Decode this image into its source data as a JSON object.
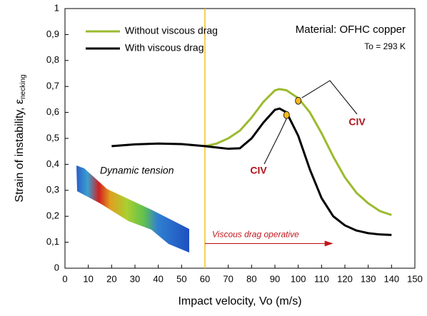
{
  "chart_data": {
    "type": "line",
    "x_label": "Impact velocity, Vo (m/s)",
    "y_label": "Strain of instability, ε",
    "y_label_sub": "necking",
    "x": [
      20,
      30,
      40,
      50,
      60,
      65,
      70,
      75,
      80,
      85,
      90,
      92,
      95,
      100,
      105,
      110,
      115,
      120,
      125,
      130,
      135,
      140
    ],
    "series": [
      {
        "name": "Without viscous drag",
        "color": "#9bbb2f",
        "values": [
          null,
          null,
          null,
          null,
          0.47,
          0.48,
          0.5,
          0.53,
          0.58,
          0.64,
          0.685,
          0.69,
          0.685,
          0.655,
          0.6,
          0.52,
          0.43,
          0.35,
          0.29,
          0.25,
          0.22,
          0.205
        ]
      },
      {
        "name": "With viscous drag",
        "color": "#000000",
        "values": [
          0.47,
          0.477,
          0.48,
          0.478,
          0.47,
          0.465,
          0.46,
          0.462,
          0.5,
          0.56,
          0.61,
          0.615,
          0.6,
          0.51,
          0.38,
          0.27,
          0.2,
          0.165,
          0.145,
          0.135,
          0.13,
          0.128
        ]
      }
    ],
    "markers": [
      {
        "label": "CIV",
        "x": 100,
        "y": 0.645
      },
      {
        "label": "CIV",
        "x": 95,
        "y": 0.59
      }
    ],
    "vline": {
      "x": 60,
      "color": "#f2c21a"
    },
    "arrow": {
      "label": "Viscous drag operative",
      "from": 60,
      "to": 115,
      "y": 0.095,
      "color": "#c0171c"
    },
    "annotations": [
      "Material: OFHC copper",
      "To = 293 K",
      "Dynamic tension"
    ],
    "xlim": [
      0,
      150
    ],
    "xticks": [
      0,
      10,
      20,
      30,
      40,
      50,
      60,
      70,
      80,
      90,
      100,
      110,
      120,
      130,
      140,
      150
    ],
    "ylim": [
      0,
      1
    ],
    "yticks": [
      0,
      {
        "value": 0.1,
        "label": "0,1"
      },
      {
        "value": 0.2,
        "label": "0,2"
      },
      {
        "value": 0.3,
        "label": "0,3"
      },
      {
        "value": 0.4,
        "label": "0,4"
      },
      {
        "value": 0.5,
        "label": "0,5"
      },
      {
        "value": 0.6,
        "label": "0,6"
      },
      {
        "value": 0.7,
        "label": "0,7"
      },
      {
        "value": 0.8,
        "label": "0,8"
      },
      {
        "value": 0.9,
        "label": "0,9"
      },
      1
    ],
    "grid": false
  }
}
